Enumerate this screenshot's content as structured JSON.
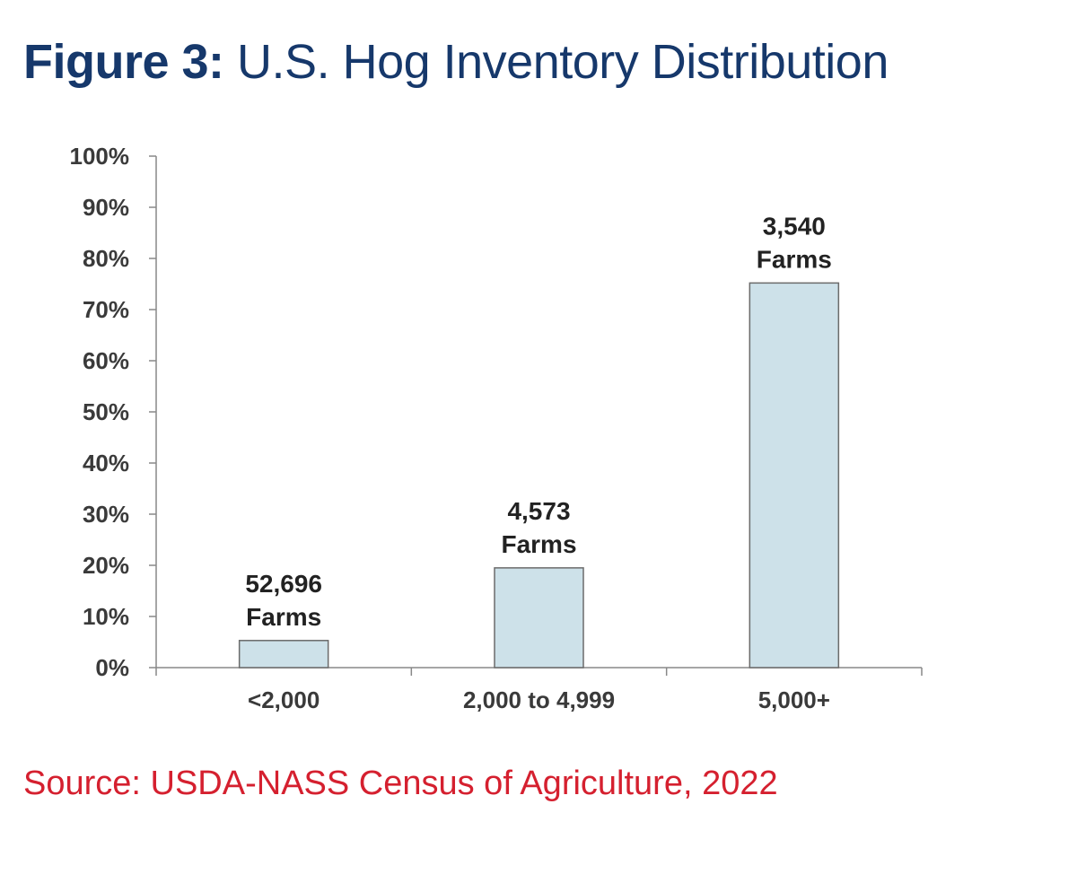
{
  "title_bold": "Figure 3:",
  "title_rest": "U.S. Hog Inventory Distribution",
  "source": "Source: USDA-NASS Census of Agriculture, 2022",
  "colors": {
    "title": "#16386b",
    "source": "#d5202f",
    "bar_fill": "#cde1e9",
    "bar_stroke": "#6b6b6b"
  },
  "chart_data": {
    "type": "bar",
    "title": "U.S. Hog Inventory Distribution",
    "categories": [
      "<2,000",
      "2,000 to 4,999",
      "5,000+"
    ],
    "values": [
      5.3,
      19.5,
      75.2
    ],
    "data_labels": [
      [
        "52,696",
        "Farms"
      ],
      [
        "4,573",
        "Farms"
      ],
      [
        "3,540",
        "Farms"
      ]
    ],
    "y_ticks": [
      "0%",
      "10%",
      "20%",
      "30%",
      "40%",
      "50%",
      "60%",
      "70%",
      "80%",
      "90%",
      "100%"
    ],
    "ylim": [
      0,
      100
    ],
    "xlabel": "",
    "ylabel": "",
    "grid": false,
    "legend": "none"
  }
}
